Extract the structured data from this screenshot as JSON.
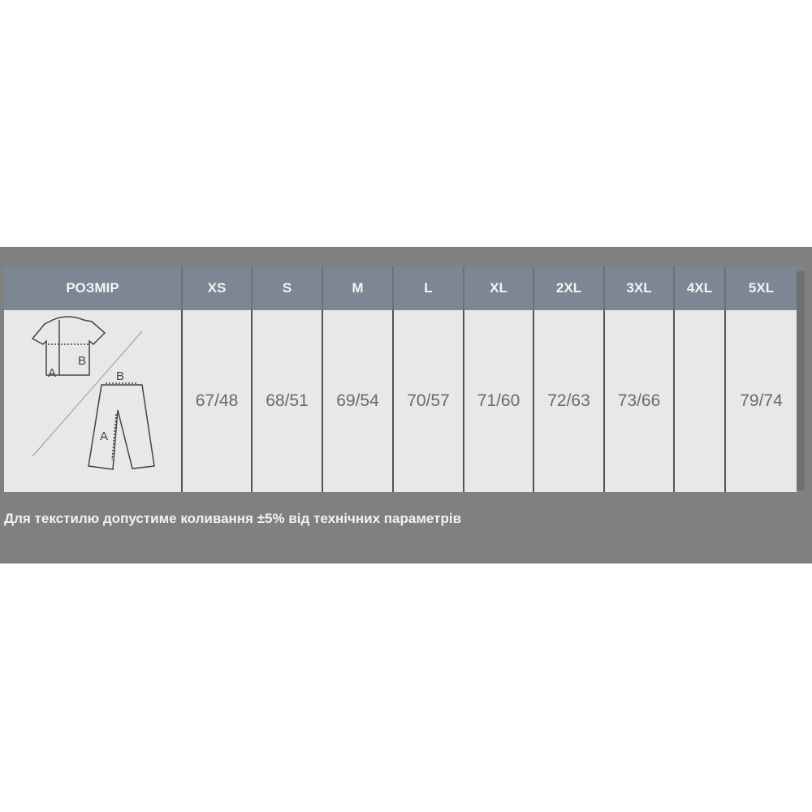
{
  "table": {
    "header_label": "РОЗМІР",
    "sizes": [
      "XS",
      "S",
      "M",
      "L",
      "XL",
      "2XL",
      "3XL",
      "4XL",
      "5XL"
    ],
    "values": [
      "67/48",
      "68/51",
      "69/54",
      "70/57",
      "71/60",
      "72/63",
      "73/66",
      "",
      "79/74"
    ],
    "diagram": {
      "shirt_labels": [
        "A",
        "B"
      ],
      "pants_labels": [
        "B",
        "A"
      ]
    }
  },
  "note": "Для текстилю допустиме коливання ±5% від технічних параметрів",
  "colors": {
    "panel": "#808080",
    "header": "#7d8692",
    "body": "#e8e8e8"
  }
}
